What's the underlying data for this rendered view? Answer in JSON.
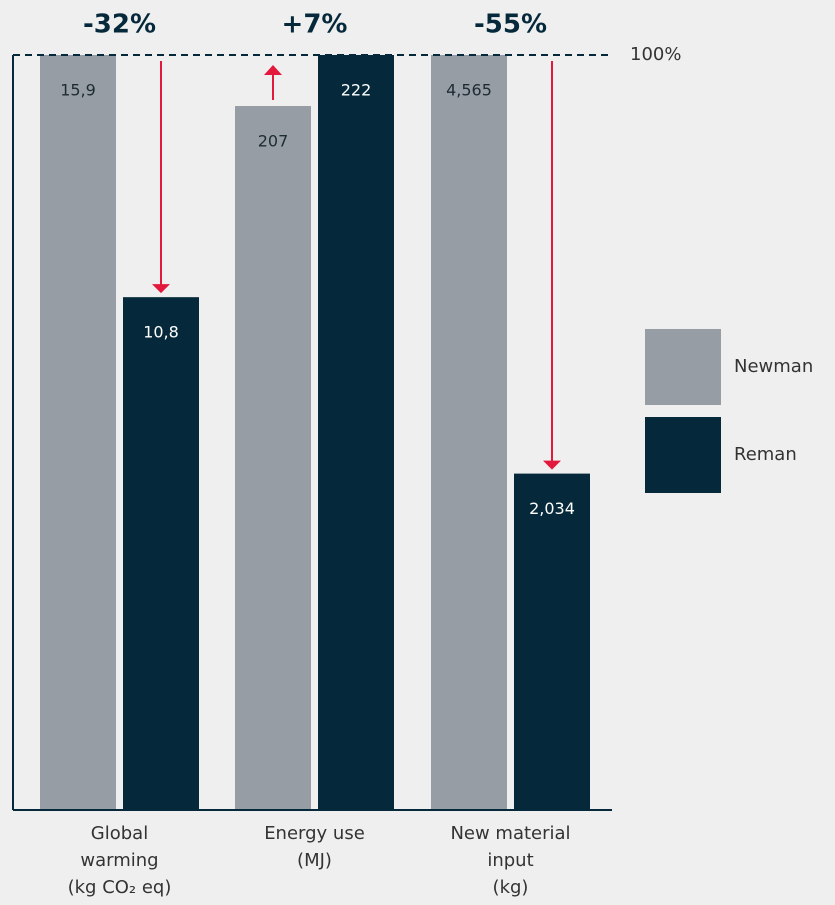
{
  "chart_data": {
    "type": "bar",
    "categories": [
      [
        "Global",
        "warming",
        "(kg CO₂ eq)"
      ],
      [
        "Energy use",
        "(MJ)"
      ],
      [
        "New material",
        "input",
        "(kg)"
      ]
    ],
    "series": [
      {
        "name": "Newman",
        "color": "#979da4",
        "values": [
          15.9,
          207,
          4565
        ],
        "value_labels": [
          "15,9",
          "207",
          "4,565"
        ]
      },
      {
        "name": "Reman",
        "color": "#05293a",
        "values": [
          10.8,
          222,
          2034
        ],
        "value_labels": [
          "10,8",
          "222",
          "2,034"
        ]
      }
    ],
    "annotations": [
      "-32%",
      "+7%",
      "-55%"
    ],
    "reference_line_label": "100%",
    "arrow_color": "#e2193c"
  }
}
